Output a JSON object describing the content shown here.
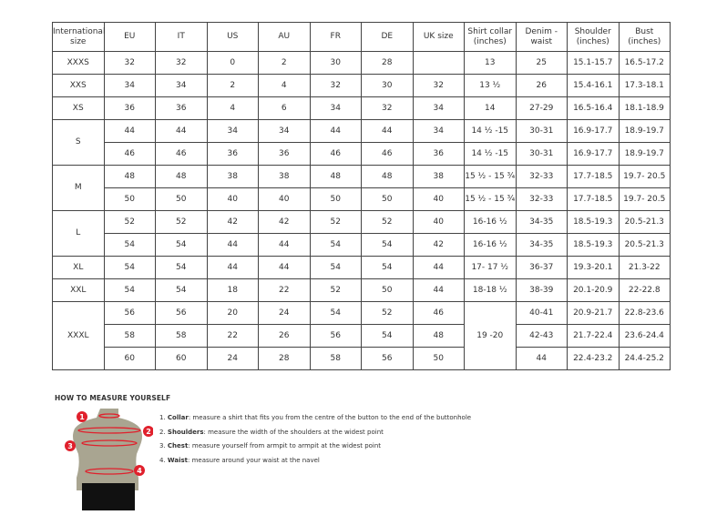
{
  "table": {
    "headers": [
      "International size",
      "EU",
      "IT",
      "US",
      "AU",
      "FR",
      "DE",
      "UK size",
      "Shirt collar (inches)",
      "Denim - waist",
      "Shoulder (inches)",
      "Bust (inches)"
    ],
    "groups": [
      {
        "size": "XXXS",
        "rows": [
          [
            "32",
            "32",
            "0",
            "2",
            "30",
            "28",
            "",
            "13",
            "25",
            "15.1-15.7",
            "16.5-17.2"
          ]
        ]
      },
      {
        "size": "XXS",
        "rows": [
          [
            "34",
            "34",
            "2",
            "4",
            "32",
            "30",
            "32",
            "13 ½",
            "26",
            "15.4-16.1",
            "17.3-18.1"
          ]
        ]
      },
      {
        "size": "XS",
        "rows": [
          [
            "36",
            "36",
            "4",
            "6",
            "34",
            "32",
            "34",
            "14",
            "27-29",
            "16.5-16.4",
            "18.1-18.9"
          ]
        ]
      },
      {
        "size": "S",
        "rows": [
          [
            "44",
            "44",
            "34",
            "34",
            "44",
            "44",
            "34",
            "14 ½ -15",
            "30-31",
            "16.9-17.7",
            "18.9-19.7"
          ],
          [
            "46",
            "46",
            "36",
            "36",
            "46",
            "46",
            "36",
            "14 ½ -15",
            "30-31",
            "16.9-17.7",
            "18.9-19.7"
          ]
        ]
      },
      {
        "size": "M",
        "rows": [
          [
            "48",
            "48",
            "38",
            "38",
            "48",
            "48",
            "38",
            "15 ½ - 15 ¾",
            "32-33",
            "17.7-18.5",
            "19.7- 20.5"
          ],
          [
            "50",
            "50",
            "40",
            "40",
            "50",
            "50",
            "40",
            "15 ½ - 15 ¾",
            "32-33",
            "17.7-18.5",
            "19.7- 20.5"
          ]
        ]
      },
      {
        "size": "L",
        "rows": [
          [
            "52",
            "52",
            "42",
            "42",
            "52",
            "52",
            "40",
            "16-16 ½",
            "34-35",
            "18.5-19.3",
            "20.5-21.3"
          ],
          [
            "54",
            "54",
            "44",
            "44",
            "54",
            "54",
            "42",
            "16-16 ½",
            "34-35",
            "18.5-19.3",
            "20.5-21.3"
          ]
        ]
      },
      {
        "size": "XL",
        "rows": [
          [
            "54",
            "54",
            "44",
            "44",
            "54",
            "54",
            "44",
            "17- 17 ½",
            "36-37",
            "19.3-20.1",
            "21.3-22"
          ]
        ]
      },
      {
        "size": "XXL",
        "rows": [
          [
            "54",
            "54",
            "18",
            "22",
            "52",
            "50",
            "44",
            "18-18 ½",
            "38-39",
            "20.1-20.9",
            "22-22.8"
          ]
        ]
      },
      {
        "size": "XXXL",
        "shared_collar": "19 -20",
        "rows": [
          [
            "56",
            "56",
            "20",
            "24",
            "54",
            "52",
            "46",
            null,
            "40-41",
            "20.9-21.7",
            "22.8-23.6"
          ],
          [
            "58",
            "58",
            "22",
            "26",
            "56",
            "54",
            "48",
            null,
            "42-43",
            "21.7-22.4",
            "23.6-24.4"
          ],
          [
            "60",
            "60",
            "24",
            "28",
            "58",
            "56",
            "50",
            null,
            "44",
            "22.4-23.2",
            "24.4-25.2"
          ]
        ]
      }
    ]
  },
  "measure": {
    "title": "HOW TO MEASURE YOURSELF",
    "steps": [
      {
        "num": "1.",
        "term": "Collar",
        "text": ": measure a shirt that fits you from the centre of the button to the end of the buttonhole"
      },
      {
        "num": "2.",
        "term": "Shoulders",
        "text": ": measure the width of the shoulders at the widest point"
      },
      {
        "num": "3.",
        "term": "Chest",
        "text": ": measure yourself from armpit to armpit at the widest point"
      },
      {
        "num": "4.",
        "term": "Waist",
        "text": ": measure around your waist at the navel"
      }
    ],
    "markers": [
      "1",
      "2",
      "3",
      "4"
    ],
    "marker_color": "#e0202c",
    "body_color": "#a9a591"
  }
}
